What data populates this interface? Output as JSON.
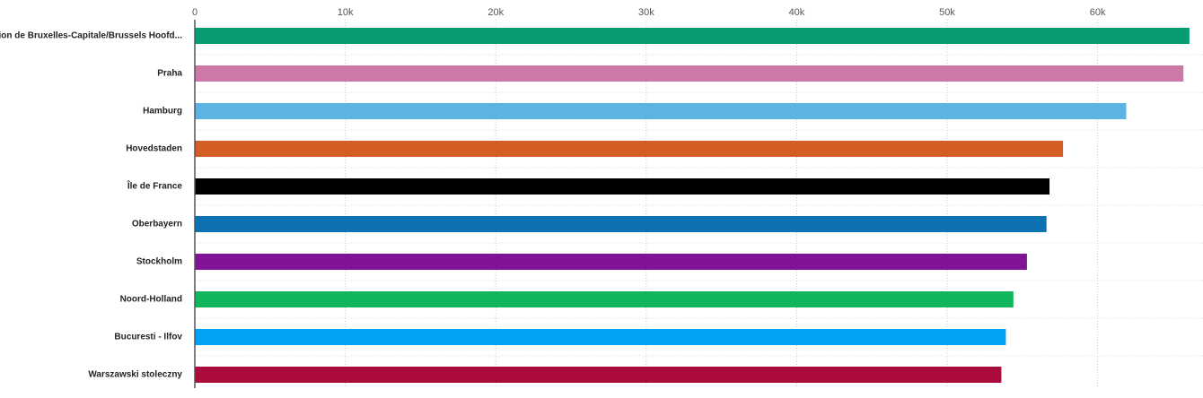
{
  "chart_data": {
    "type": "bar",
    "orientation": "horizontal",
    "categories": [
      "Région de Bruxelles-Capitale/Brussels Hoofd...",
      "Praha",
      "Hamburg",
      "Hovedstaden",
      "Île de France",
      "Oberbayern",
      "Stockholm",
      "Noord-Holland",
      "Bucuresti - Ilfov",
      "Warszawski stoleczny"
    ],
    "values": [
      66100,
      65700,
      61900,
      57700,
      56800,
      56600,
      55300,
      54400,
      53900,
      53600
    ],
    "colors": [
      "#089c74",
      "#cc79a7",
      "#5db3e3",
      "#d55e27",
      "#000000",
      "#0c72b1",
      "#801396",
      "#0fb65c",
      "#02a3f4",
      "#ac0c3b"
    ],
    "xlim": [
      0,
      67000
    ],
    "xticks": [
      0,
      {
        "value": 10000,
        "label": "10k"
      },
      {
        "value": 20000,
        "label": "20k"
      },
      {
        "value": 30000,
        "label": "30k"
      },
      {
        "value": 40000,
        "label": "40k"
      },
      {
        "value": 50000,
        "label": "50k"
      },
      {
        "value": 60000,
        "label": "60k"
      }
    ],
    "grid": true
  }
}
